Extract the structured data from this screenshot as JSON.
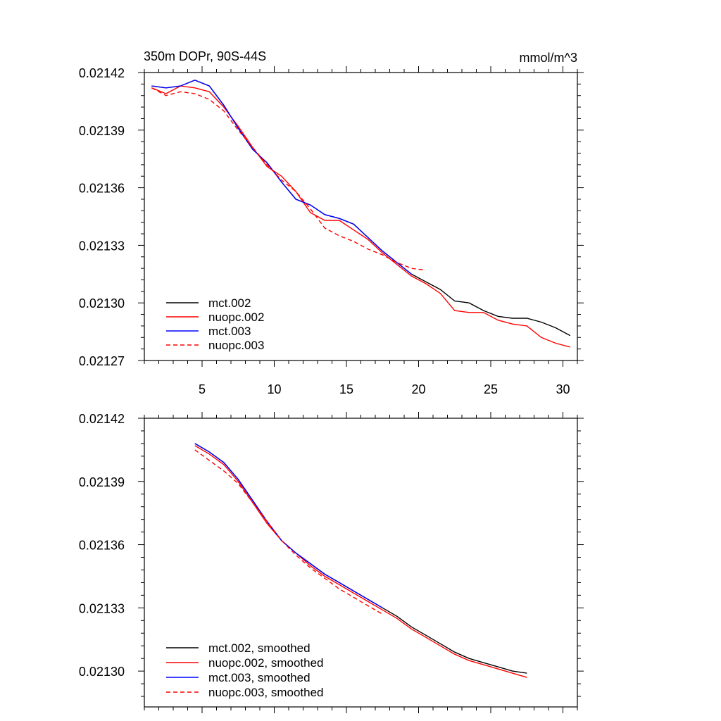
{
  "chart_data": [
    {
      "type": "line",
      "title": "350m DOPr, 90S-44S",
      "units": "mmol/m^3",
      "xlim": [
        1,
        31
      ],
      "ylim": [
        0.02127,
        0.02142
      ],
      "xticks": [
        5,
        10,
        15,
        20,
        25,
        30
      ],
      "xtick_labels": [
        "5",
        "10",
        "15",
        "20",
        "25",
        "30"
      ],
      "yticks": [
        0.02127,
        0.0213,
        0.02133,
        0.02136,
        0.02139,
        0.02142
      ],
      "ytick_labels": [
        "0.02127",
        "0.02130",
        "0.02133",
        "0.02136",
        "0.02139",
        "0.02142"
      ],
      "legend_position": "bottom-left",
      "series": [
        {
          "name": "mct.002",
          "color": "#000000",
          "dash": "solid",
          "x": [
            1.5,
            2.5,
            3.5,
            4.5,
            5.5,
            6.5,
            7.5,
            8.5,
            9.5,
            10.5,
            11.5,
            12.5,
            13.5,
            14.5,
            15.5,
            16.5,
            17.5,
            18.5,
            19.5,
            20.5,
            21.5,
            22.5,
            23.5,
            24.5,
            25.5,
            26.5,
            27.5,
            28.5,
            29.5,
            30.5
          ],
          "y": [
            0.021413,
            0.021412,
            0.021413,
            0.021416,
            0.021413,
            0.021403,
            0.021391,
            0.02138,
            0.021373,
            0.021363,
            0.021354,
            0.021351,
            0.021346,
            0.021344,
            0.021341,
            0.021334,
            0.021327,
            0.021321,
            0.021315,
            0.021311,
            0.021307,
            0.021301,
            0.0213,
            0.021296,
            0.021293,
            0.021292,
            0.021292,
            0.02129,
            0.021287,
            0.021283
          ]
        },
        {
          "name": "nuopc.002",
          "color": "#ff0000",
          "dash": "solid",
          "x": [
            1.5,
            2.5,
            3.5,
            4.5,
            5.5,
            6.5,
            7.5,
            8.5,
            9.5,
            10.5,
            11.5,
            12.5,
            13.5,
            14.5,
            15.5,
            16.5,
            17.5,
            18.5,
            19.5,
            20.5,
            21.5,
            22.5,
            23.5,
            24.5,
            25.5,
            26.5,
            27.5,
            28.5,
            29.5,
            30.5
          ],
          "y": [
            0.021412,
            0.021409,
            0.021413,
            0.021412,
            0.02141,
            0.021402,
            0.021392,
            0.021381,
            0.021371,
            0.021366,
            0.021358,
            0.021347,
            0.021343,
            0.021343,
            0.021338,
            0.021333,
            0.021326,
            0.02132,
            0.021314,
            0.02131,
            0.021305,
            0.021296,
            0.021295,
            0.021295,
            0.021291,
            0.021289,
            0.021288,
            0.021282,
            0.021279,
            0.021277
          ]
        },
        {
          "name": "mct.003",
          "color": "#0000ff",
          "dash": "solid",
          "x": [
            1.5,
            2.5,
            3.5,
            4.5,
            5.5,
            6.5,
            7.5,
            8.5,
            9.5,
            10.5,
            11.5,
            12.5,
            13.5,
            14.5,
            15.5,
            16.5,
            17.5,
            18.5,
            19.5
          ],
          "y": [
            0.021413,
            0.021412,
            0.021413,
            0.021416,
            0.021413,
            0.021403,
            0.021391,
            0.02138,
            0.021373,
            0.021363,
            0.021354,
            0.021351,
            0.021346,
            0.021344,
            0.021341,
            0.021334,
            0.021327,
            0.021321,
            0.021315
          ]
        },
        {
          "name": "nuopc.003",
          "color": "#ff0000",
          "dash": "dashed",
          "x": [
            1.5,
            2.5,
            3.5,
            4.5,
            5.5,
            6.5,
            7.5,
            8.5,
            9.5,
            10.5,
            11.5,
            12.5,
            13.5,
            14.5,
            15.5,
            16.5,
            17.5,
            18.5,
            19.5,
            20.5
          ],
          "y": [
            0.021412,
            0.021408,
            0.02141,
            0.021409,
            0.021406,
            0.0214,
            0.02139,
            0.021381,
            0.021372,
            0.021364,
            0.021358,
            0.021349,
            0.021339,
            0.021335,
            0.021332,
            0.021328,
            0.021325,
            0.021321,
            0.021318,
            0.021317
          ]
        }
      ]
    },
    {
      "type": "line",
      "title": "",
      "xlim": [
        1,
        31
      ],
      "ylim": [
        0.02128,
        0.02142
      ],
      "xticks": [
        5,
        10,
        15,
        20,
        25,
        30
      ],
      "yticks": [
        0.0213,
        0.02133,
        0.02136,
        0.02139,
        0.02142
      ],
      "ytick_labels": [
        "0.02130",
        "0.02133",
        "0.02136",
        "0.02139",
        "0.02142"
      ],
      "legend_position": "bottom-left",
      "series": [
        {
          "name": "mct.002, smoothed",
          "color": "#000000",
          "dash": "solid",
          "x": [
            4.5,
            5.5,
            6.5,
            7.5,
            8.5,
            9.5,
            10.5,
            11.5,
            12.5,
            13.5,
            14.5,
            15.5,
            16.5,
            17.5,
            18.5,
            19.5,
            20.5,
            21.5,
            22.5,
            23.5,
            24.5,
            25.5,
            26.5,
            27.5
          ],
          "y": [
            0.021408,
            0.021404,
            0.021399,
            0.021391,
            0.021381,
            0.021371,
            0.021362,
            0.021356,
            0.021351,
            0.021346,
            0.021342,
            0.021338,
            0.021334,
            0.02133,
            0.021326,
            0.021321,
            0.021317,
            0.021313,
            0.021309,
            0.021306,
            0.021304,
            0.021302,
            0.0213,
            0.021299
          ]
        },
        {
          "name": "nuopc.002, smoothed",
          "color": "#ff0000",
          "dash": "solid",
          "x": [
            4.5,
            5.5,
            6.5,
            7.5,
            8.5,
            9.5,
            10.5,
            11.5,
            12.5,
            13.5,
            14.5,
            15.5,
            16.5,
            17.5,
            18.5,
            19.5,
            20.5,
            21.5,
            22.5,
            23.5,
            24.5,
            25.5,
            26.5,
            27.5
          ],
          "y": [
            0.021407,
            0.021403,
            0.021398,
            0.02139,
            0.02138,
            0.02137,
            0.021362,
            0.021356,
            0.02135,
            0.021345,
            0.021341,
            0.021337,
            0.021333,
            0.021329,
            0.021325,
            0.02132,
            0.021316,
            0.021312,
            0.021308,
            0.021305,
            0.021303,
            0.021301,
            0.021299,
            0.021297
          ]
        },
        {
          "name": "mct.003, smoothed",
          "color": "#0000ff",
          "dash": "solid",
          "x": [
            4.5,
            5.5,
            6.5,
            7.5,
            8.5,
            9.5,
            10.5,
            11.5,
            12.5,
            13.5,
            14.5,
            15.5,
            16.5,
            17.5
          ],
          "y": [
            0.021408,
            0.021404,
            0.021399,
            0.021391,
            0.021381,
            0.021371,
            0.021362,
            0.021356,
            0.021351,
            0.021346,
            0.021342,
            0.021338,
            0.021334,
            0.02133
          ]
        },
        {
          "name": "nuopc.003, smoothed",
          "color": "#ff0000",
          "dash": "dashed",
          "x": [
            4.5,
            5.5,
            6.5,
            7.5,
            8.5,
            9.5,
            10.5,
            11.5,
            12.5,
            13.5,
            14.5,
            15.5,
            16.5,
            17.5
          ],
          "y": [
            0.021405,
            0.0214,
            0.021395,
            0.021389,
            0.02138,
            0.021371,
            0.021362,
            0.021355,
            0.021349,
            0.021344,
            0.021339,
            0.021335,
            0.021331,
            0.021327
          ]
        }
      ]
    }
  ]
}
